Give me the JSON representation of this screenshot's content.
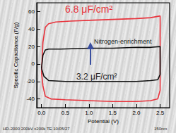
{
  "chart_data": {
    "type": "line",
    "x_label": "Potential (V)",
    "y_label": "Specific Capacitance (F/g)",
    "xlim": [
      -0.1,
      2.7
    ],
    "xticks": [
      {
        "value": 0,
        "label": "0.0"
      },
      {
        "value": 0.5,
        "label": "0.5"
      },
      {
        "value": 1,
        "label": "1.0"
      },
      {
        "value": 1.5,
        "label": "1.5"
      },
      {
        "value": 2,
        "label": "2.0"
      },
      {
        "value": 2.5,
        "label": "2.5"
      }
    ],
    "ylim": [
      -50,
      70
    ],
    "yticks": [
      -40,
      -20,
      0,
      20,
      40,
      60
    ],
    "grid": false,
    "series": [
      {
        "color": "#e8333c",
        "x": [
          0,
          0.03,
          0.08,
          0.15,
          0.3,
          0.6,
          1.0,
          1.5,
          2.0,
          2.3,
          2.5,
          2.5,
          2.45,
          2.3,
          2.0,
          1.5,
          1.0,
          0.5,
          0.2,
          0.08,
          0.03,
          0
        ],
        "values": [
          -10,
          25,
          42,
          46,
          48,
          49,
          50,
          51,
          52,
          53,
          55,
          -30,
          -40,
          -42,
          -43,
          -43,
          -42,
          -41,
          -40,
          -37,
          -25,
          -10
        ]
      },
      {
        "color": "#111111",
        "x": [
          0,
          0.03,
          0.08,
          0.15,
          0.4,
          1.0,
          1.5,
          2.0,
          2.3,
          2.5,
          2.5,
          2.45,
          2.3,
          2.0,
          1.5,
          1.0,
          0.5,
          0.15,
          0.05,
          0
        ],
        "values": [
          -5,
          10,
          16,
          17,
          17,
          18,
          18,
          19,
          19,
          20,
          -12,
          -18,
          -19,
          -20,
          -20,
          -20,
          -20,
          -19,
          -14,
          -5
        ]
      }
    ],
    "annotations": [
      {
        "text": "6.8 μF/cm²",
        "color": "#e8333c"
      },
      {
        "text": "Nitrogen-enrichment",
        "color": "#222222"
      },
      {
        "text": "3.2 μF/cm²",
        "color": "#222222"
      },
      {
        "text": "HD-2000 200kV x200k TE 10/05/27",
        "color": "#222222"
      },
      {
        "text": "150nm",
        "color": "#222222"
      }
    ]
  }
}
